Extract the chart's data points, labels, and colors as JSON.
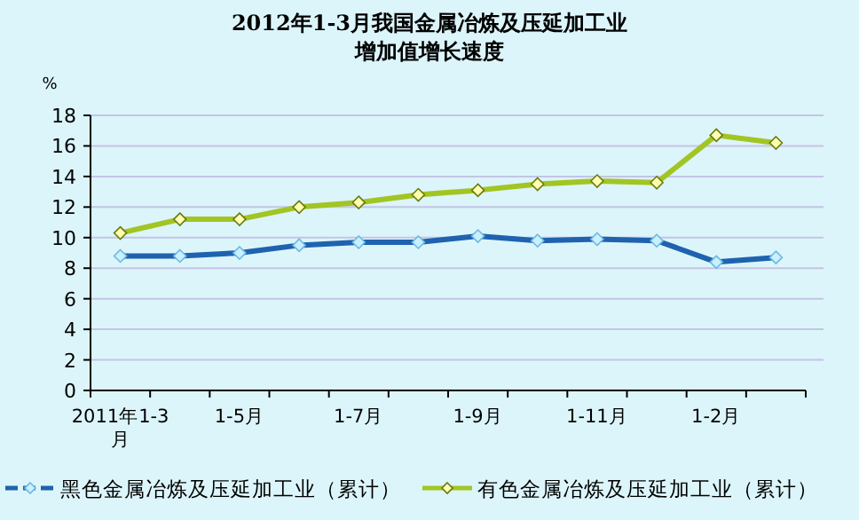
{
  "chart_data": {
    "type": "line",
    "title": "2012年1-3月我国金属冶炼及压延加工业",
    "subtitle": "增加值增长速度",
    "ylabel": "%",
    "categories": [
      "2011年1-3月",
      null,
      "1-5月",
      null,
      "1-7月",
      null,
      "1-9月",
      null,
      "1-11月",
      null,
      "1-2月",
      null
    ],
    "series": [
      {
        "name": "黑色金属冶炼及压延加工业（累计）",
        "color": "#1f62b0",
        "values": [
          8.8,
          8.8,
          9.0,
          9.5,
          9.7,
          9.7,
          10.1,
          9.8,
          9.9,
          9.8,
          8.4,
          8.7
        ]
      },
      {
        "name": "有色金属冶炼及压延加工业（累计）",
        "color": "#a2c523",
        "values": [
          10.3,
          11.2,
          11.2,
          12.0,
          12.3,
          12.8,
          13.1,
          13.5,
          13.7,
          13.6,
          16.7,
          16.2
        ]
      }
    ],
    "ylim": [
      0,
      18
    ],
    "yticks": [
      0,
      2,
      4,
      6,
      8,
      10,
      12,
      14,
      16,
      18
    ],
    "grid": "y",
    "legend": "bottom",
    "marker": "diamond",
    "line_style": "solid"
  }
}
